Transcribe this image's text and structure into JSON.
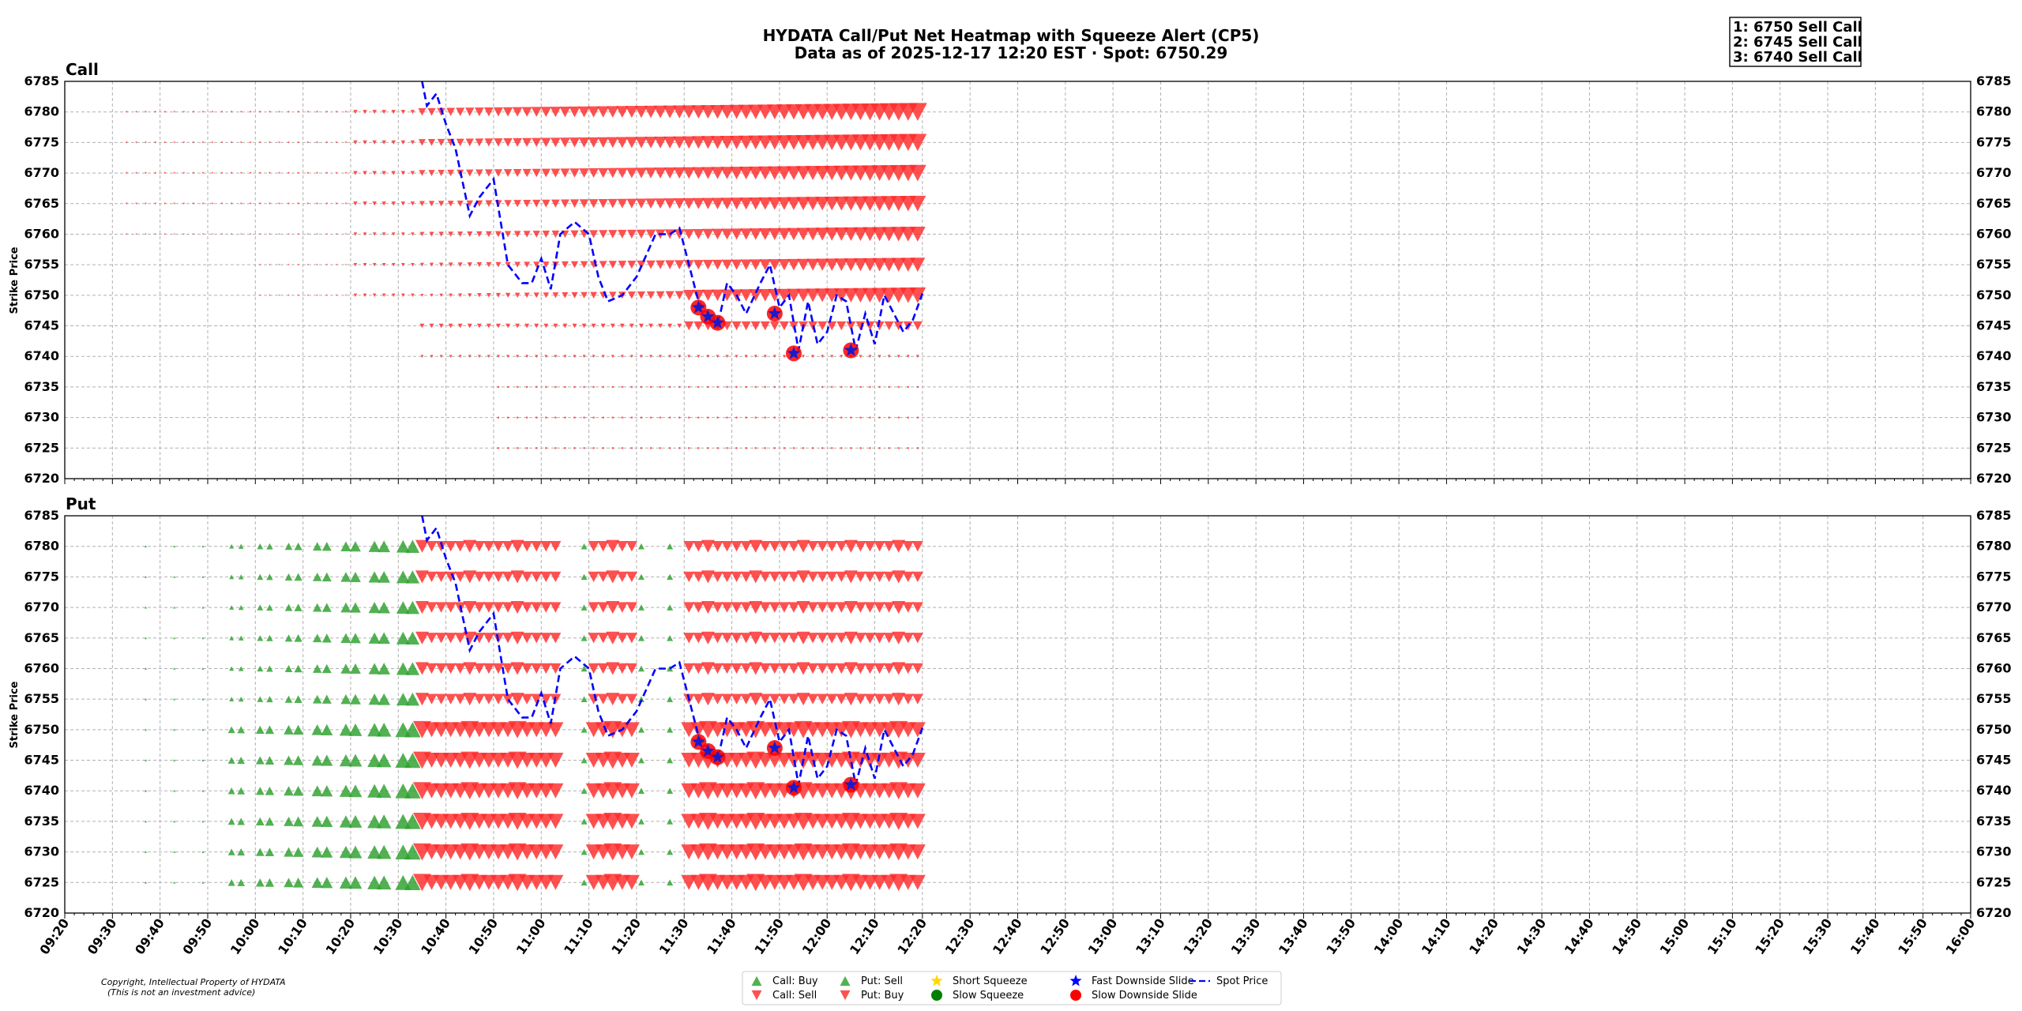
{
  "chart_data": {
    "type": "heatmap",
    "title": "HYDATA Call/Put Net Heatmap with Squeeze Alert (CP5)",
    "subtitle": "Data as of 2025-12-17 12:20 EST · Spot: 6750.29",
    "ylabel": "Strike Price",
    "ylim": [
      6720,
      6785
    ],
    "yticks": [
      "6720",
      "6725",
      "6730",
      "6735",
      "6740",
      "6745",
      "6750",
      "6755",
      "6760",
      "6765",
      "6770",
      "6775",
      "6780",
      "6785"
    ],
    "xticks": [
      "09:20",
      "09:30",
      "09:40",
      "09:50",
      "10:00",
      "10:10",
      "10:20",
      "10:30",
      "10:40",
      "10:50",
      "11:00",
      "11:10",
      "11:20",
      "11:30",
      "11:40",
      "11:50",
      "12:00",
      "12:10",
      "12:20",
      "12:30",
      "12:40",
      "12:50",
      "13:00",
      "13:10",
      "13:20",
      "13:30",
      "13:40",
      "13:50",
      "14:00",
      "14:10",
      "14:20",
      "14:30",
      "14:40",
      "14:50",
      "15:00",
      "15:10",
      "15:20",
      "15:30",
      "15:40",
      "15:50",
      "16:00"
    ],
    "xrange": [
      "09:20",
      "16:00"
    ],
    "grid": true,
    "legend_position": "bottom-center",
    "panels": [
      "Call",
      "Put"
    ],
    "alerts": [
      "1: 6750 Sell Call",
      "2: 6745 Sell Call",
      "3: 6740 Sell Call"
    ],
    "legend": [
      {
        "label": "Call: Buy",
        "marker": "triangle-up",
        "color": "#2ca02c"
      },
      {
        "label": "Call: Sell",
        "marker": "triangle-down",
        "color": "#ff2a2a"
      },
      {
        "label": "Put: Sell",
        "marker": "triangle-up",
        "color": "#2ca02c"
      },
      {
        "label": "Put: Buy",
        "marker": "triangle-down",
        "color": "#ff2a2a"
      },
      {
        "label": "Short Squeeze",
        "marker": "star",
        "color": "#ffd700"
      },
      {
        "label": "Slow Squeeze",
        "marker": "circle",
        "color": "#008000"
      },
      {
        "label": "Fast Downside Slide",
        "marker": "star",
        "color": "#0000ff"
      },
      {
        "label": "Slow Downside Slide",
        "marker": "circle",
        "color": "#ff0000"
      },
      {
        "label": "Spot Price",
        "marker": "dashed-line",
        "color": "#0000ff"
      }
    ],
    "spot_price": [
      {
        "t": "10:35",
        "p": 6788
      },
      {
        "t": "10:36",
        "p": 6781
      },
      {
        "t": "10:38",
        "p": 6783
      },
      {
        "t": "10:40",
        "p": 6778
      },
      {
        "t": "10:42",
        "p": 6774
      },
      {
        "t": "10:45",
        "p": 6763
      },
      {
        "t": "10:47",
        "p": 6766
      },
      {
        "t": "10:50",
        "p": 6769
      },
      {
        "t": "10:53",
        "p": 6755
      },
      {
        "t": "10:56",
        "p": 6752
      },
      {
        "t": "10:58",
        "p": 6752
      },
      {
        "t": "11:00",
        "p": 6756
      },
      {
        "t": "11:02",
        "p": 6751
      },
      {
        "t": "11:04",
        "p": 6760
      },
      {
        "t": "11:07",
        "p": 6762
      },
      {
        "t": "11:10",
        "p": 6760
      },
      {
        "t": "11:12",
        "p": 6753
      },
      {
        "t": "11:14",
        "p": 6749
      },
      {
        "t": "11:17",
        "p": 6750
      },
      {
        "t": "11:20",
        "p": 6753
      },
      {
        "t": "11:24",
        "p": 6760
      },
      {
        "t": "11:27",
        "p": 6760
      },
      {
        "t": "11:29",
        "p": 6761
      },
      {
        "t": "11:31",
        "p": 6755
      },
      {
        "t": "11:33",
        "p": 6749
      },
      {
        "t": "11:35",
        "p": 6747
      },
      {
        "t": "11:37",
        "p": 6745
      },
      {
        "t": "11:39",
        "p": 6752
      },
      {
        "t": "11:41",
        "p": 6750
      },
      {
        "t": "11:43",
        "p": 6747
      },
      {
        "t": "11:46",
        "p": 6752
      },
      {
        "t": "11:48",
        "p": 6755
      },
      {
        "t": "11:50",
        "p": 6748
      },
      {
        "t": "11:52",
        "p": 6750
      },
      {
        "t": "11:54",
        "p": 6741
      },
      {
        "t": "11:56",
        "p": 6749
      },
      {
        "t": "11:58",
        "p": 6742
      },
      {
        "t": "12:00",
        "p": 6744
      },
      {
        "t": "12:02",
        "p": 6750
      },
      {
        "t": "12:04",
        "p": 6749
      },
      {
        "t": "12:06",
        "p": 6741
      },
      {
        "t": "12:08",
        "p": 6747
      },
      {
        "t": "12:10",
        "p": 6742
      },
      {
        "t": "12:12",
        "p": 6750
      },
      {
        "t": "12:14",
        "p": 6747
      },
      {
        "t": "12:16",
        "p": 6744
      },
      {
        "t": "12:18",
        "p": 6746
      },
      {
        "t": "12:20",
        "p": 6750.29
      }
    ],
    "alert_markers": [
      {
        "t": "11:33",
        "p": 6748,
        "type": "Fast Downside Slide + Slow Downside Slide"
      },
      {
        "t": "11:35",
        "p": 6746.5,
        "type": "Fast Downside Slide + Slow Downside Slide"
      },
      {
        "t": "11:37",
        "p": 6745.5,
        "type": "Fast Downside Slide + Slow Downside Slide"
      },
      {
        "t": "11:49",
        "p": 6747,
        "type": "Fast Downside Slide + Slow Downside Slide"
      },
      {
        "t": "11:53",
        "p": 6740.5,
        "type": "Fast Downside Slide + Slow Downside Slide"
      },
      {
        "t": "12:05",
        "p": 6741,
        "type": "Fast Downside Slide + Slow Downside Slide"
      }
    ],
    "call_net": {
      "strikes_sell": [
        6780,
        6775,
        6770,
        6765,
        6760,
        6755,
        6750
      ],
      "strikes_sell_small": [
        6745,
        6740
      ],
      "strikes_faint": [
        6735,
        6730,
        6725
      ],
      "start_time": "09:33",
      "end_time": "12:20",
      "strong_from": "10:35",
      "max_from": "11:30",
      "note": "net selling (red down triangles) grows in size toward 12:20"
    },
    "put_net": {
      "strikes": [
        6780,
        6775,
        6770,
        6765,
        6760,
        6755,
        6750,
        6745,
        6740,
        6735,
        6730,
        6725
      ],
      "sell_up_green_window": [
        "09:55",
        "10:35"
      ],
      "buy_down_red_windows": [
        [
          "10:35",
          "11:05"
        ],
        [
          "11:10",
          "11:20"
        ],
        [
          "11:30",
          "12:20"
        ]
      ],
      "end_time": "12:20",
      "note": "put selling (green) builds in the morning, flips to put buying (red) after 10:35"
    }
  },
  "footer": {
    "copyright": "Copyright, Intellectual Property of HYDATA",
    "disclaimer": "(This is not an investment advice)"
  }
}
